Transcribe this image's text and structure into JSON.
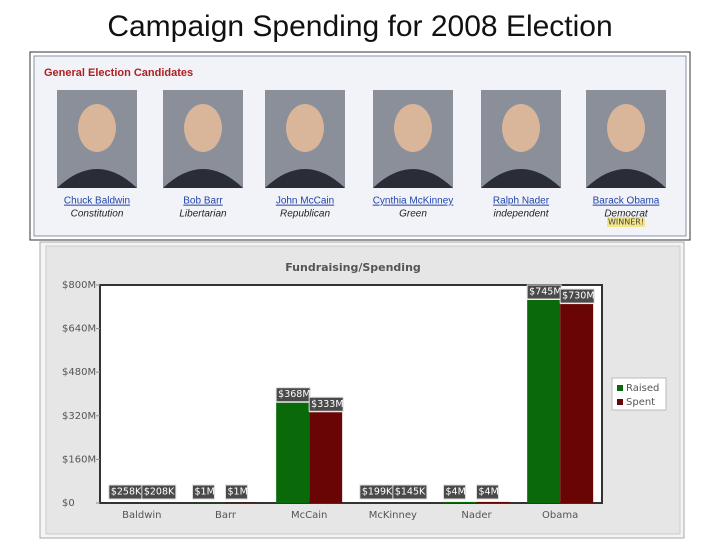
{
  "slide_title": "Campaign Spending for 2008 Election",
  "panel": {
    "title": "General Election Candidates",
    "candidates": [
      {
        "name": "Chuck Baldwin",
        "party": "Constitution"
      },
      {
        "name": "Bob Barr",
        "party": "Libertarian"
      },
      {
        "name": "John McCain",
        "party": "Republican"
      },
      {
        "name": "Cynthia McKinney",
        "party": "Green"
      },
      {
        "name": "Ralph Nader",
        "party": "independent"
      },
      {
        "name": "Barack Obama",
        "party": "Democrat",
        "badge": "WINNER!"
      }
    ]
  },
  "chart_data": {
    "type": "bar",
    "title": "Fundraising/Spending",
    "categories": [
      "Baldwin",
      "Barr",
      "McCain",
      "McKinney",
      "Nader",
      "Obama"
    ],
    "series": [
      {
        "name": "Raised",
        "color": "#0a6a0a",
        "values": [
          258000,
          1000000,
          368000000,
          199000,
          4000000,
          745000000
        ],
        "value_labels": [
          "$258K",
          "$1M",
          "$368M",
          "$199K",
          "$4M",
          "$745M"
        ]
      },
      {
        "name": "Spent",
        "color": "#6a0505",
        "values": [
          208000,
          1000000,
          333000000,
          145000,
          4000000,
          730000000
        ],
        "value_labels": [
          "$208K",
          "$1M",
          "$333M",
          "$145K",
          "$4M",
          "$730M"
        ]
      }
    ],
    "ylim": [
      0,
      800000000
    ],
    "yticks": [
      {
        "value": 0,
        "label": "$0"
      },
      {
        "value": 160000000,
        "label": "$160M"
      },
      {
        "value": 320000000,
        "label": "$320M"
      },
      {
        "value": 480000000,
        "label": "$480M"
      },
      {
        "value": 640000000,
        "label": "$640M"
      },
      {
        "value": 800000000,
        "label": "$800M"
      }
    ],
    "grid": false,
    "legend": "right"
  }
}
